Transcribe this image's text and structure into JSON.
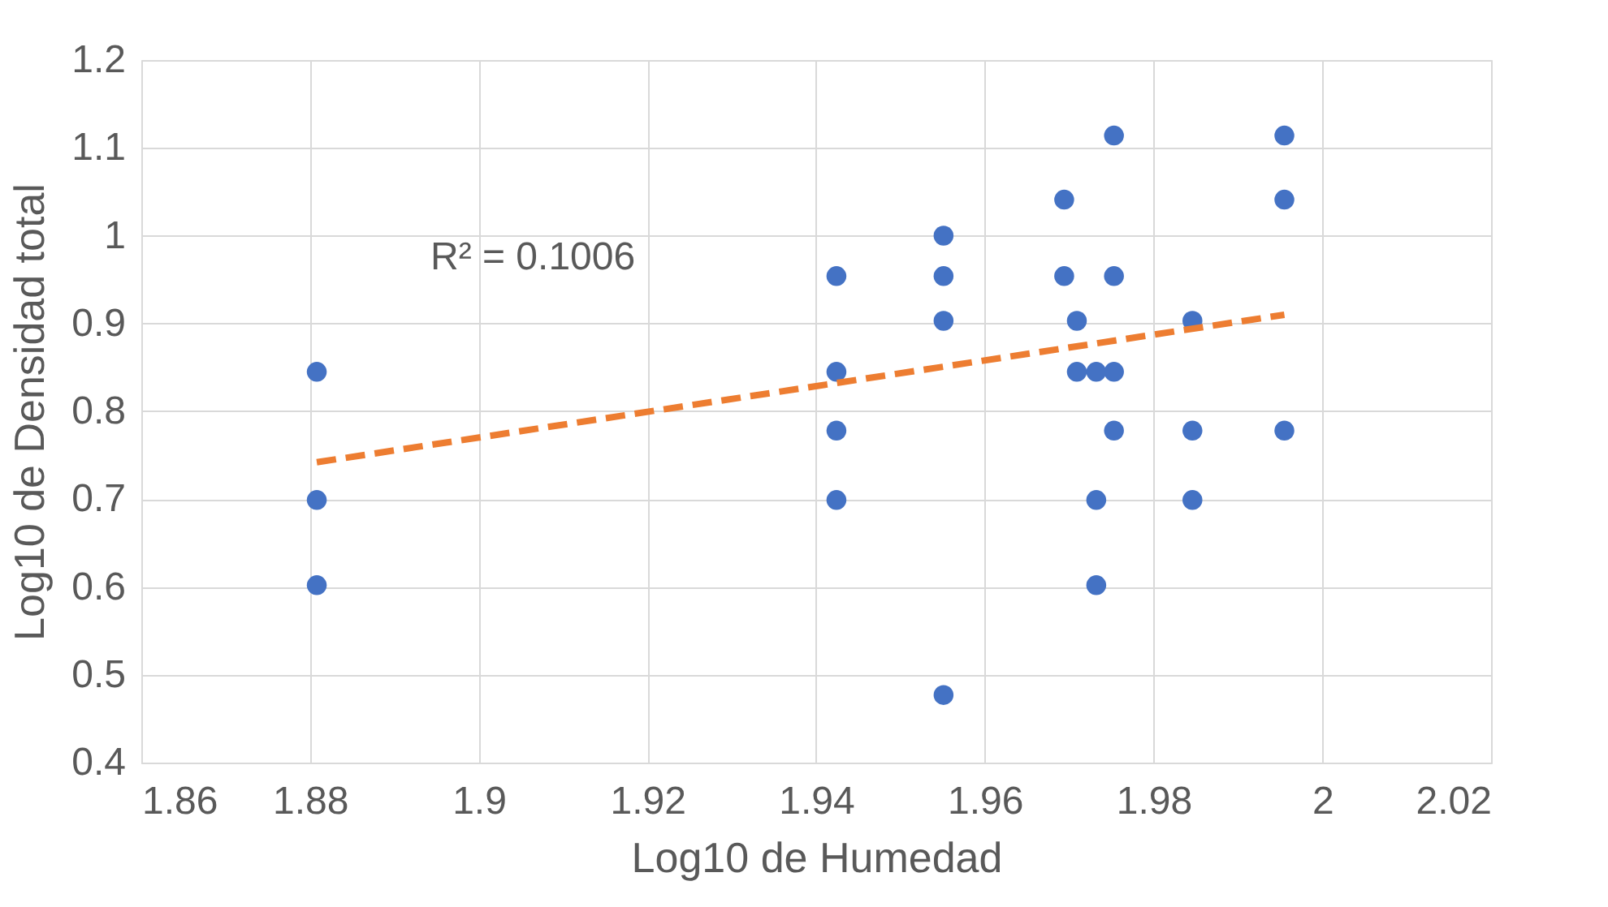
{
  "chart_data": {
    "type": "scatter",
    "xlabel": "Log10 de Humedad",
    "ylabel": "Log10 de Densidad total",
    "series": [
      {
        "color": "#4472c4",
        "marker": "circle",
        "x": [
          1.8808,
          1.8808,
          1.8808,
          1.9424,
          1.9424,
          1.9424,
          1.9424,
          1.9551,
          1.9551,
          1.9551,
          1.9551,
          1.9694,
          1.9694,
          1.9709,
          1.9709,
          1.9732,
          1.9732,
          1.9732,
          1.9753,
          1.9753,
          1.9753,
          1.9753,
          1.9846,
          1.9846,
          1.9846,
          1.9955,
          1.9955,
          1.9955
        ],
        "values": [
          0.845,
          0.699,
          0.602,
          0.954,
          0.845,
          0.778,
          0.699,
          1.0,
          0.954,
          0.903,
          0.477,
          1.041,
          0.954,
          0.903,
          0.845,
          0.845,
          0.699,
          0.602,
          1.114,
          0.954,
          0.845,
          0.778,
          0.903,
          0.778,
          0.699,
          1.114,
          1.041,
          0.778
        ]
      },
      {
        "type": "line",
        "color": "#ed7d31",
        "line_style": "dashed",
        "x": [
          1.8808,
          1.9955
        ],
        "values": [
          0.742,
          0.91
        ]
      }
    ],
    "annotations": [
      "R² = 0.1006"
    ],
    "xlim": [
      1.86,
      2.02
    ],
    "xticks": [
      1.86,
      1.88,
      1.9,
      1.92,
      1.94,
      1.96,
      1.98,
      2,
      2.02
    ],
    "ylim": [
      0.4,
      1.2
    ],
    "yticks": [
      0.4,
      0.5,
      0.6,
      0.7,
      0.8,
      0.9,
      1,
      1.1,
      1.2
    ],
    "grid": true
  }
}
